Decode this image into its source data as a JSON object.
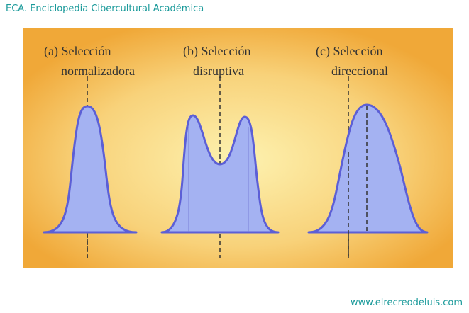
{
  "header": {
    "title": "ECA. Enciclopedia Cibercultural Académica"
  },
  "panels": [
    {
      "label_line1": "(a) Selección",
      "label_line2": "normalizadora"
    },
    {
      "label_line1": "(b) Selección",
      "label_line2": "disruptiva"
    },
    {
      "label_line1": "(c) Selección",
      "label_line2": "direccional"
    }
  ],
  "footer": {
    "url": "www.elrecreodeluis.com"
  }
}
